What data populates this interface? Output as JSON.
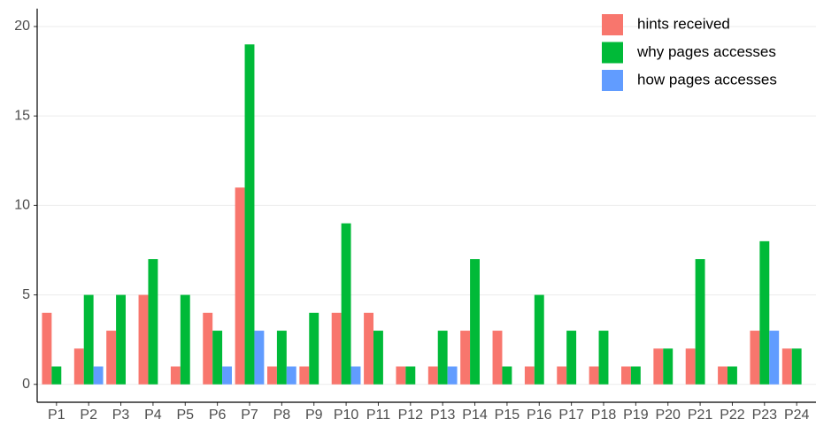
{
  "chart_data": {
    "type": "bar",
    "categories": [
      "P1",
      "P2",
      "P3",
      "P4",
      "P5",
      "P6",
      "P7",
      "P8",
      "P9",
      "P10",
      "P11",
      "P12",
      "P13",
      "P14",
      "P15",
      "P16",
      "P17",
      "P18",
      "P19",
      "P20",
      "P21",
      "P22",
      "P23",
      "P24"
    ],
    "series": [
      {
        "name": "hints received",
        "color": "#F8766D",
        "values": [
          4,
          2,
          3,
          5,
          1,
          4,
          11,
          1,
          1,
          4,
          4,
          1,
          1,
          3,
          3,
          1,
          1,
          1,
          1,
          2,
          2,
          1,
          3,
          2
        ]
      },
      {
        "name": "why pages accesses",
        "color": "#00BA38",
        "values": [
          1,
          5,
          5,
          7,
          5,
          3,
          19,
          3,
          4,
          9,
          3,
          1,
          3,
          7,
          1,
          5,
          3,
          3,
          1,
          2,
          7,
          1,
          8,
          2
        ]
      },
      {
        "name": "how pages accesses",
        "color": "#619CFF",
        "values": [
          0,
          1,
          0,
          0,
          0,
          1,
          3,
          1,
          0,
          1,
          0,
          0,
          1,
          0,
          0,
          0,
          0,
          0,
          0,
          0,
          0,
          0,
          3,
          0
        ]
      }
    ],
    "ylim": [
      -1,
      21
    ],
    "yticks": [
      0,
      5,
      10,
      15,
      20
    ],
    "grid": true,
    "legend": "top-right"
  }
}
